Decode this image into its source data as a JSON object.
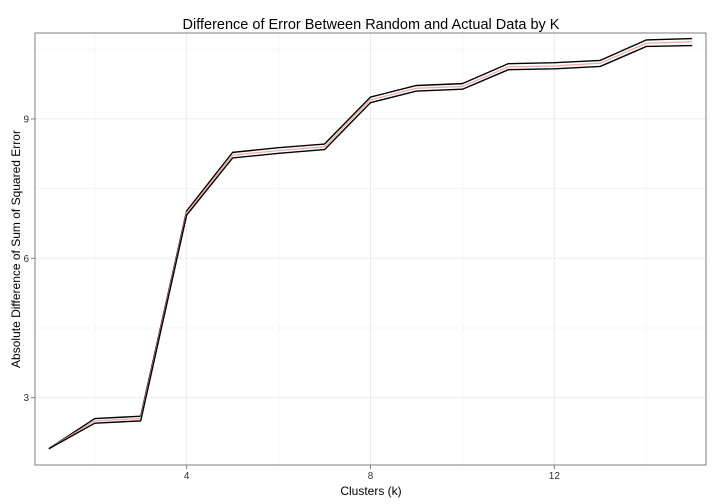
{
  "chart_data": {
    "type": "line",
    "title": "Difference of Error Between Random and Actual Data by K",
    "xlabel": "Clusters (k)",
    "ylabel": "Absolute Difference of Sum of Squared Error",
    "xlim": [
      0.7,
      15.3
    ],
    "ylim": [
      1.55,
      10.85
    ],
    "x_ticks": [
      4,
      8,
      12
    ],
    "y_ticks": [
      3,
      6,
      9
    ],
    "grid": true,
    "legend": "none",
    "x": [
      1,
      2,
      3,
      4,
      5,
      6,
      7,
      8,
      9,
      10,
      11,
      12,
      13,
      14,
      15
    ],
    "series": [
      {
        "role": "upper",
        "color": "#000000",
        "values": [
          1.9,
          2.55,
          2.6,
          7.02,
          8.28,
          8.38,
          8.46,
          9.47,
          9.72,
          9.76,
          10.19,
          10.21,
          10.26,
          10.7,
          10.73
        ]
      },
      {
        "role": "mean",
        "color": "#f4a6a6",
        "values": [
          1.9,
          2.5,
          2.55,
          6.98,
          8.22,
          8.32,
          8.4,
          9.41,
          9.66,
          9.7,
          10.12,
          10.14,
          10.2,
          10.63,
          10.66
        ]
      },
      {
        "role": "lower",
        "color": "#000000",
        "values": [
          1.9,
          2.45,
          2.5,
          6.93,
          8.16,
          8.26,
          8.34,
          9.35,
          9.6,
          9.64,
          10.06,
          10.08,
          10.13,
          10.56,
          10.58
        ]
      }
    ]
  }
}
